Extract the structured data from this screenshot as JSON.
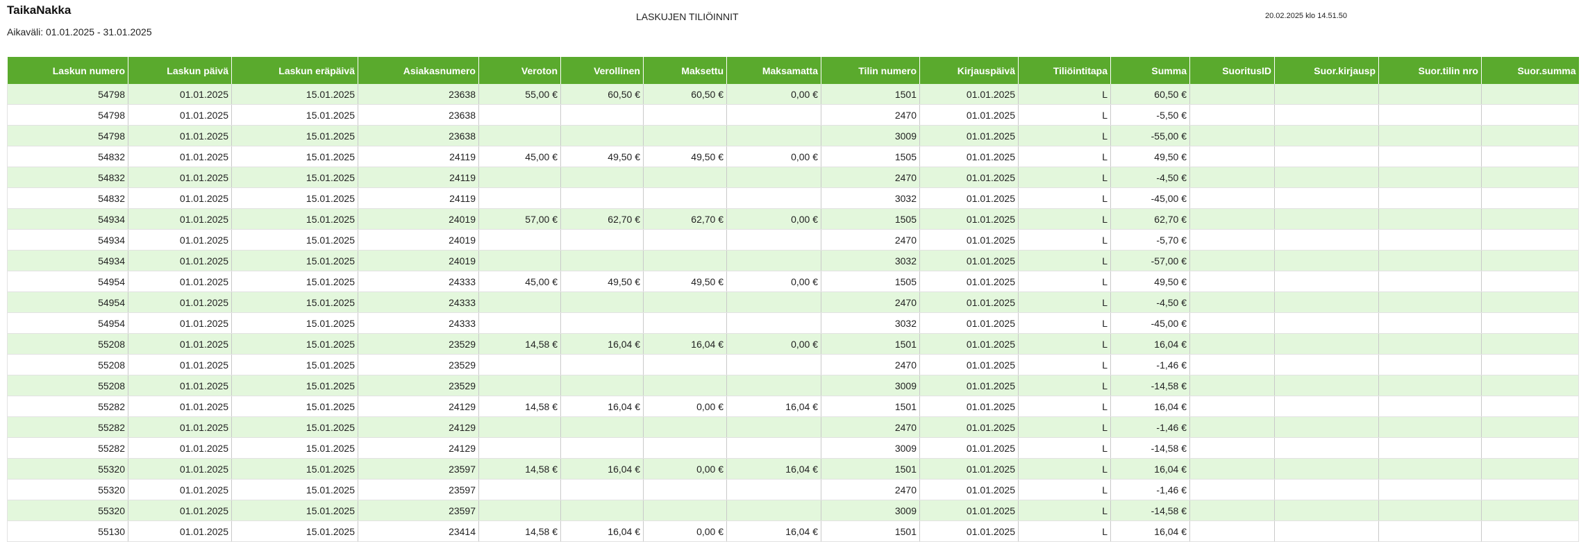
{
  "header": {
    "company": "TaikaNakka",
    "period": "Aikaväli: 01.01.2025 - 31.01.2025",
    "title": "LASKUJEN TILIÖINNIT",
    "timestamp": "20.02.2025 klo 14.51.50"
  },
  "table": {
    "columns": [
      "Laskun numero",
      "Laskun päivä",
      "Laskun eräpäivä",
      "Asiakasnumero",
      "Veroton",
      "Verollinen",
      "Maksettu",
      "Maksamatta",
      "Tilin numero",
      "Kirjauspäivä",
      "Tiliöintitapa",
      "Summa",
      "SuoritusID",
      "Suor.kirjausp",
      "Suor.tilin nro",
      "Suor.summa"
    ],
    "rows": [
      [
        "54798",
        "01.01.2025",
        "15.01.2025",
        "23638",
        "55,00 €",
        "60,50 €",
        "60,50 €",
        "0,00 €",
        "1501",
        "01.01.2025",
        "L",
        "60,50 €",
        "",
        "",
        "",
        ""
      ],
      [
        "54798",
        "01.01.2025",
        "15.01.2025",
        "23638",
        "",
        "",
        "",
        "",
        "2470",
        "01.01.2025",
        "L",
        "-5,50 €",
        "",
        "",
        "",
        ""
      ],
      [
        "54798",
        "01.01.2025",
        "15.01.2025",
        "23638",
        "",
        "",
        "",
        "",
        "3009",
        "01.01.2025",
        "L",
        "-55,00 €",
        "",
        "",
        "",
        ""
      ],
      [
        "54832",
        "01.01.2025",
        "15.01.2025",
        "24119",
        "45,00 €",
        "49,50 €",
        "49,50 €",
        "0,00 €",
        "1505",
        "01.01.2025",
        "L",
        "49,50 €",
        "",
        "",
        "",
        ""
      ],
      [
        "54832",
        "01.01.2025",
        "15.01.2025",
        "24119",
        "",
        "",
        "",
        "",
        "2470",
        "01.01.2025",
        "L",
        "-4,50 €",
        "",
        "",
        "",
        ""
      ],
      [
        "54832",
        "01.01.2025",
        "15.01.2025",
        "24119",
        "",
        "",
        "",
        "",
        "3032",
        "01.01.2025",
        "L",
        "-45,00 €",
        "",
        "",
        "",
        ""
      ],
      [
        "54934",
        "01.01.2025",
        "15.01.2025",
        "24019",
        "57,00 €",
        "62,70 €",
        "62,70 €",
        "0,00 €",
        "1505",
        "01.01.2025",
        "L",
        "62,70 €",
        "",
        "",
        "",
        ""
      ],
      [
        "54934",
        "01.01.2025",
        "15.01.2025",
        "24019",
        "",
        "",
        "",
        "",
        "2470",
        "01.01.2025",
        "L",
        "-5,70 €",
        "",
        "",
        "",
        ""
      ],
      [
        "54934",
        "01.01.2025",
        "15.01.2025",
        "24019",
        "",
        "",
        "",
        "",
        "3032",
        "01.01.2025",
        "L",
        "-57,00 €",
        "",
        "",
        "",
        ""
      ],
      [
        "54954",
        "01.01.2025",
        "15.01.2025",
        "24333",
        "45,00 €",
        "49,50 €",
        "49,50 €",
        "0,00 €",
        "1505",
        "01.01.2025",
        "L",
        "49,50 €",
        "",
        "",
        "",
        ""
      ],
      [
        "54954",
        "01.01.2025",
        "15.01.2025",
        "24333",
        "",
        "",
        "",
        "",
        "2470",
        "01.01.2025",
        "L",
        "-4,50 €",
        "",
        "",
        "",
        ""
      ],
      [
        "54954",
        "01.01.2025",
        "15.01.2025",
        "24333",
        "",
        "",
        "",
        "",
        "3032",
        "01.01.2025",
        "L",
        "-45,00 €",
        "",
        "",
        "",
        ""
      ],
      [
        "55208",
        "01.01.2025",
        "15.01.2025",
        "23529",
        "14,58 €",
        "16,04 €",
        "16,04 €",
        "0,00 €",
        "1501",
        "01.01.2025",
        "L",
        "16,04 €",
        "",
        "",
        "",
        ""
      ],
      [
        "55208",
        "01.01.2025",
        "15.01.2025",
        "23529",
        "",
        "",
        "",
        "",
        "2470",
        "01.01.2025",
        "L",
        "-1,46 €",
        "",
        "",
        "",
        ""
      ],
      [
        "55208",
        "01.01.2025",
        "15.01.2025",
        "23529",
        "",
        "",
        "",
        "",
        "3009",
        "01.01.2025",
        "L",
        "-14,58 €",
        "",
        "",
        "",
        ""
      ],
      [
        "55282",
        "01.01.2025",
        "15.01.2025",
        "24129",
        "14,58 €",
        "16,04 €",
        "0,00 €",
        "16,04 €",
        "1501",
        "01.01.2025",
        "L",
        "16,04 €",
        "",
        "",
        "",
        ""
      ],
      [
        "55282",
        "01.01.2025",
        "15.01.2025",
        "24129",
        "",
        "",
        "",
        "",
        "2470",
        "01.01.2025",
        "L",
        "-1,46 €",
        "",
        "",
        "",
        ""
      ],
      [
        "55282",
        "01.01.2025",
        "15.01.2025",
        "24129",
        "",
        "",
        "",
        "",
        "3009",
        "01.01.2025",
        "L",
        "-14,58 €",
        "",
        "",
        "",
        ""
      ],
      [
        "55320",
        "01.01.2025",
        "15.01.2025",
        "23597",
        "14,58 €",
        "16,04 €",
        "0,00 €",
        "16,04 €",
        "1501",
        "01.01.2025",
        "L",
        "16,04 €",
        "",
        "",
        "",
        ""
      ],
      [
        "55320",
        "01.01.2025",
        "15.01.2025",
        "23597",
        "",
        "",
        "",
        "",
        "2470",
        "01.01.2025",
        "L",
        "-1,46 €",
        "",
        "",
        "",
        ""
      ],
      [
        "55320",
        "01.01.2025",
        "15.01.2025",
        "23597",
        "",
        "",
        "",
        "",
        "3009",
        "01.01.2025",
        "L",
        "-14,58 €",
        "",
        "",
        "",
        ""
      ],
      [
        "55130",
        "01.01.2025",
        "15.01.2025",
        "23414",
        "14,58 €",
        "16,04 €",
        "0,00 €",
        "16,04 €",
        "1501",
        "01.01.2025",
        "L",
        "16,04 €",
        "",
        "",
        "",
        ""
      ]
    ]
  },
  "colors": {
    "header_bg": "#5aaa2d",
    "row_stripe": "#e3f7dc"
  }
}
